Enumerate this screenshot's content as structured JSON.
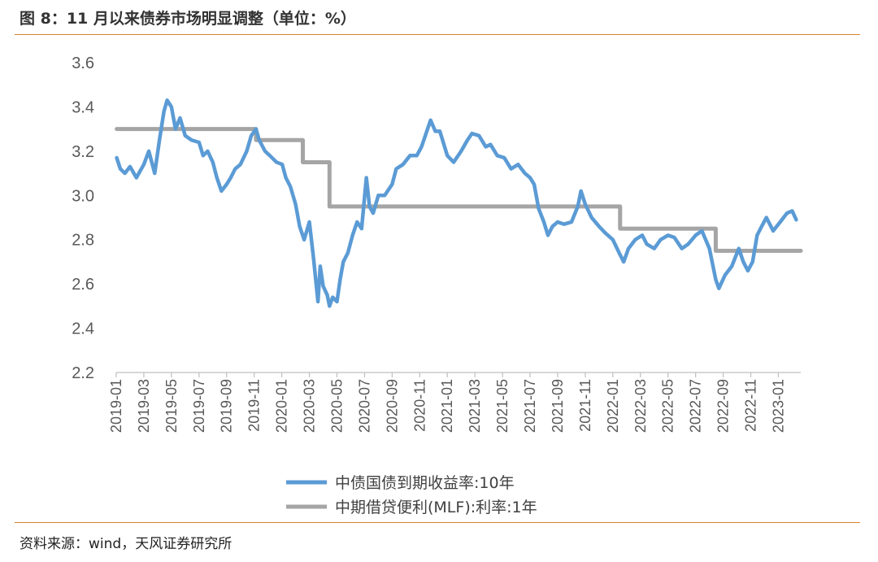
{
  "header": {
    "title": "图 8：11 月以来债券市场明显调整（单位：%）"
  },
  "footer": {
    "source": "资料来源：wind，天风证券研究所"
  },
  "chart_data": {
    "type": "line",
    "title": "",
    "xlabel": "",
    "ylabel": "",
    "ylim": [
      2.2,
      3.6
    ],
    "yticks": [
      "2.2",
      "2.4",
      "2.6",
      "2.8",
      "3.0",
      "3.2",
      "3.4",
      "3.6"
    ],
    "x_range": [
      "2019-01",
      "2023-03"
    ],
    "xticks": [
      "2019-01",
      "2019-03",
      "2019-05",
      "2019-07",
      "2019-09",
      "2019-11",
      "2020-01",
      "2020-03",
      "2020-05",
      "2020-07",
      "2020-09",
      "2020-11",
      "2021-01",
      "2021-03",
      "2021-05",
      "2021-07",
      "2021-09",
      "2021-11",
      "2022-01",
      "2022-03",
      "2022-05",
      "2022-07",
      "2022-09",
      "2022-11",
      "2023-01"
    ],
    "grid": false,
    "legend_position": "bottom",
    "series": [
      {
        "name": "中债国债到期收益率:10年",
        "color": "#5b9bd5",
        "style": "step-free",
        "points": [
          [
            "2019-01-02",
            3.17
          ],
          [
            "2019-01-10",
            3.12
          ],
          [
            "2019-01-20",
            3.1
          ],
          [
            "2019-02-01",
            3.13
          ],
          [
            "2019-02-15",
            3.08
          ],
          [
            "2019-03-01",
            3.14
          ],
          [
            "2019-03-12",
            3.2
          ],
          [
            "2019-03-25",
            3.1
          ],
          [
            "2019-04-05",
            3.25
          ],
          [
            "2019-04-15",
            3.38
          ],
          [
            "2019-04-22",
            3.43
          ],
          [
            "2019-05-01",
            3.4
          ],
          [
            "2019-05-10",
            3.3
          ],
          [
            "2019-05-20",
            3.35
          ],
          [
            "2019-06-01",
            3.27
          ],
          [
            "2019-06-15",
            3.25
          ],
          [
            "2019-07-01",
            3.24
          ],
          [
            "2019-07-10",
            3.18
          ],
          [
            "2019-07-20",
            3.2
          ],
          [
            "2019-08-01",
            3.15
          ],
          [
            "2019-08-10",
            3.08
          ],
          [
            "2019-08-20",
            3.02
          ],
          [
            "2019-09-01",
            3.05
          ],
          [
            "2019-09-10",
            3.08
          ],
          [
            "2019-09-20",
            3.12
          ],
          [
            "2019-10-01",
            3.14
          ],
          [
            "2019-10-15",
            3.2
          ],
          [
            "2019-10-25",
            3.27
          ],
          [
            "2019-11-05",
            3.3
          ],
          [
            "2019-11-12",
            3.25
          ],
          [
            "2019-11-25",
            3.2
          ],
          [
            "2019-12-05",
            3.18
          ],
          [
            "2019-12-20",
            3.15
          ],
          [
            "2020-01-02",
            3.14
          ],
          [
            "2020-01-10",
            3.08
          ],
          [
            "2020-01-20",
            3.04
          ],
          [
            "2020-02-01",
            2.96
          ],
          [
            "2020-02-10",
            2.86
          ],
          [
            "2020-02-20",
            2.8
          ],
          [
            "2020-03-01",
            2.88
          ],
          [
            "2020-03-10",
            2.72
          ],
          [
            "2020-03-15",
            2.62
          ],
          [
            "2020-03-20",
            2.52
          ],
          [
            "2020-03-25",
            2.68
          ],
          [
            "2020-04-01",
            2.59
          ],
          [
            "2020-04-10",
            2.55
          ],
          [
            "2020-04-15",
            2.5
          ],
          [
            "2020-04-22",
            2.54
          ],
          [
            "2020-05-01",
            2.52
          ],
          [
            "2020-05-08",
            2.62
          ],
          [
            "2020-05-15",
            2.7
          ],
          [
            "2020-05-25",
            2.74
          ],
          [
            "2020-06-05",
            2.82
          ],
          [
            "2020-06-15",
            2.88
          ],
          [
            "2020-06-25",
            2.85
          ],
          [
            "2020-07-05",
            3.08
          ],
          [
            "2020-07-12",
            2.95
          ],
          [
            "2020-07-20",
            2.92
          ],
          [
            "2020-08-01",
            3.0
          ],
          [
            "2020-08-15",
            3.0
          ],
          [
            "2020-09-01",
            3.05
          ],
          [
            "2020-09-10",
            3.12
          ],
          [
            "2020-09-25",
            3.14
          ],
          [
            "2020-10-10",
            3.18
          ],
          [
            "2020-10-25",
            3.18
          ],
          [
            "2020-11-05",
            3.22
          ],
          [
            "2020-11-15",
            3.28
          ],
          [
            "2020-11-25",
            3.34
          ],
          [
            "2020-12-05",
            3.29
          ],
          [
            "2020-12-15",
            3.29
          ],
          [
            "2021-01-01",
            3.18
          ],
          [
            "2021-01-15",
            3.15
          ],
          [
            "2021-02-01",
            3.2
          ],
          [
            "2021-02-15",
            3.25
          ],
          [
            "2021-02-25",
            3.28
          ],
          [
            "2021-03-10",
            3.27
          ],
          [
            "2021-03-25",
            3.22
          ],
          [
            "2021-04-05",
            3.23
          ],
          [
            "2021-04-20",
            3.18
          ],
          [
            "2021-05-05",
            3.17
          ],
          [
            "2021-05-20",
            3.12
          ],
          [
            "2021-06-05",
            3.14
          ],
          [
            "2021-06-20",
            3.1
          ],
          [
            "2021-07-01",
            3.08
          ],
          [
            "2021-07-10",
            3.05
          ],
          [
            "2021-07-20",
            2.94
          ],
          [
            "2021-08-01",
            2.88
          ],
          [
            "2021-08-10",
            2.82
          ],
          [
            "2021-08-20",
            2.86
          ],
          [
            "2021-09-01",
            2.88
          ],
          [
            "2021-09-15",
            2.87
          ],
          [
            "2021-10-01",
            2.88
          ],
          [
            "2021-10-15",
            2.95
          ],
          [
            "2021-10-22",
            3.02
          ],
          [
            "2021-11-01",
            2.96
          ],
          [
            "2021-11-15",
            2.9
          ],
          [
            "2021-12-01",
            2.86
          ],
          [
            "2021-12-15",
            2.83
          ],
          [
            "2022-01-01",
            2.8
          ],
          [
            "2022-01-15",
            2.74
          ],
          [
            "2022-01-25",
            2.7
          ],
          [
            "2022-02-05",
            2.76
          ],
          [
            "2022-02-20",
            2.8
          ],
          [
            "2022-03-05",
            2.82
          ],
          [
            "2022-03-15",
            2.78
          ],
          [
            "2022-04-01",
            2.76
          ],
          [
            "2022-04-15",
            2.8
          ],
          [
            "2022-05-01",
            2.82
          ],
          [
            "2022-05-15",
            2.81
          ],
          [
            "2022-06-01",
            2.76
          ],
          [
            "2022-06-15",
            2.78
          ],
          [
            "2022-07-01",
            2.82
          ],
          [
            "2022-07-15",
            2.84
          ],
          [
            "2022-08-01",
            2.76
          ],
          [
            "2022-08-15",
            2.62
          ],
          [
            "2022-08-22",
            2.58
          ],
          [
            "2022-09-05",
            2.64
          ],
          [
            "2022-09-20",
            2.68
          ],
          [
            "2022-10-05",
            2.76
          ],
          [
            "2022-10-15",
            2.7
          ],
          [
            "2022-10-25",
            2.66
          ],
          [
            "2022-11-05",
            2.7
          ],
          [
            "2022-11-15",
            2.82
          ],
          [
            "2022-11-25",
            2.86
          ],
          [
            "2022-12-05",
            2.9
          ],
          [
            "2022-12-20",
            2.84
          ],
          [
            "2023-01-05",
            2.88
          ],
          [
            "2023-01-20",
            2.92
          ],
          [
            "2023-02-01",
            2.93
          ],
          [
            "2023-02-10",
            2.89
          ]
        ]
      },
      {
        "name": "中期借贷便利(MLF):利率:1年",
        "color": "#a5a5a5",
        "style": "step",
        "points": [
          [
            "2019-01-02",
            3.3
          ],
          [
            "2019-11-05",
            3.25
          ],
          [
            "2020-02-17",
            3.15
          ],
          [
            "2020-04-15",
            2.95
          ],
          [
            "2022-01-17",
            2.85
          ],
          [
            "2022-08-15",
            2.75
          ],
          [
            "2023-02-15",
            2.75
          ]
        ]
      }
    ]
  }
}
